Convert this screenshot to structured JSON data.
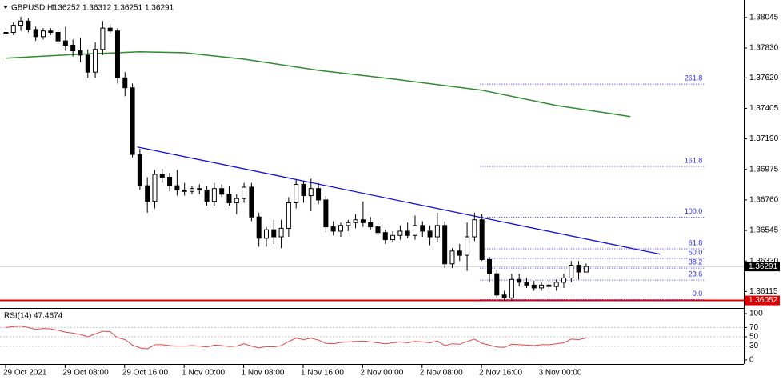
{
  "chart_data": {
    "type": "candlestick",
    "title": "GBPUSD,H1",
    "categories": [
      "29 Oct 2021",
      null,
      null,
      null,
      null,
      null,
      null,
      null,
      "29 Oct 08:00",
      null,
      null,
      null,
      null,
      null,
      null,
      null,
      "29 Oct 16:00",
      null,
      null,
      null,
      null,
      null,
      null,
      null,
      "1 Nov 00:00",
      null,
      null,
      null,
      null,
      null,
      null,
      null,
      "1 Nov 08:00",
      null,
      null,
      null,
      null,
      null,
      null,
      null,
      "1 Nov 16:00",
      null,
      null,
      null,
      null,
      null,
      null,
      null,
      "2 Nov 00:00",
      null,
      null,
      null,
      null,
      null,
      null,
      null,
      "2 Nov 08:00",
      null,
      null,
      null,
      null,
      null,
      null,
      null,
      "2 Nov 16:00",
      null,
      null,
      null,
      null,
      null,
      null,
      null,
      "3 Nov 00:00",
      null,
      null,
      null,
      null,
      null,
      null
    ],
    "open": [
      1.3794,
      1.3794,
      1.3799,
      1.3802,
      1.3796,
      1.3791,
      1.3795,
      1.3794,
      1.3788,
      1.3785,
      1.3781,
      1.3778,
      1.3766,
      1.3782,
      1.3797,
      1.3795,
      1.3762,
      1.3755,
      1.3708,
      1.3686,
      1.3675,
      1.3694,
      1.3692,
      1.3686,
      1.3683,
      1.3682,
      1.3684,
      1.3683,
      1.3675,
      1.3684,
      1.368,
      1.3674,
      1.3677,
      1.3685,
      1.3664,
      1.3649,
      1.3655,
      1.365,
      1.3656,
      1.3674,
      1.3687,
      1.3679,
      1.3684,
      1.3676,
      1.3657,
      1.3654,
      1.3658,
      1.366,
      1.3662,
      1.366,
      1.3657,
      1.3653,
      1.3648,
      1.3651,
      1.3654,
      1.3651,
      1.3658,
      1.3654,
      1.365,
      1.3658,
      1.3631,
      1.364,
      1.3637,
      1.365,
      1.3662,
      1.3634,
      1.3624,
      1.3609,
      1.3607,
      1.362,
      1.3618,
      1.3616,
      1.3614,
      1.3616,
      1.3615,
      1.3618,
      1.3621,
      1.363,
      1.36252
    ],
    "high": [
      1.3797,
      1.3801,
      1.3805,
      1.3804,
      1.3798,
      1.3797,
      1.3797,
      1.3796,
      1.3798,
      1.3789,
      1.379,
      1.3782,
      1.3787,
      1.3802,
      1.38,
      1.3797,
      1.3766,
      1.3758,
      1.3712,
      1.3692,
      1.3697,
      1.3698,
      1.3695,
      1.3697,
      1.3688,
      1.3686,
      1.3687,
      1.3686,
      1.3688,
      1.3687,
      1.3686,
      1.368,
      1.3688,
      1.3688,
      1.3667,
      1.3657,
      1.3662,
      1.3662,
      1.3678,
      1.369,
      1.3689,
      1.3691,
      1.3688,
      1.3679,
      1.3661,
      1.366,
      1.3662,
      1.3666,
      1.3675,
      1.3664,
      1.366,
      1.3655,
      1.3654,
      1.3658,
      1.366,
      1.3665,
      1.3661,
      1.3658,
      1.3667,
      1.3661,
      1.3642,
      1.3645,
      1.366,
      1.3667,
      1.3666,
      1.3636,
      1.3627,
      1.3612,
      1.3624,
      1.3624,
      1.3621,
      1.3619,
      1.3618,
      1.3619,
      1.362,
      1.3624,
      1.3633,
      1.3633,
      1.36312
    ],
    "low": [
      1.3791,
      1.3792,
      1.3795,
      1.3794,
      1.3788,
      1.3789,
      1.3792,
      1.3786,
      1.3781,
      1.3777,
      1.3773,
      1.3762,
      1.3762,
      1.3778,
      1.3793,
      1.3758,
      1.3749,
      1.3706,
      1.3683,
      1.3667,
      1.367,
      1.3688,
      1.3682,
      1.3679,
      1.3679,
      1.368,
      1.368,
      1.3672,
      1.3672,
      1.3678,
      1.3672,
      1.3666,
      1.3674,
      1.3661,
      1.3643,
      1.3643,
      1.3645,
      1.3642,
      1.365,
      1.367,
      1.3674,
      1.3668,
      1.3673,
      1.3653,
      1.3651,
      1.365,
      1.3654,
      1.3656,
      1.3657,
      1.3655,
      1.3651,
      1.3645,
      1.3646,
      1.3648,
      1.3649,
      1.3648,
      1.365,
      1.3644,
      1.3646,
      1.3628,
      1.3628,
      1.3633,
      1.3626,
      1.3647,
      1.3633,
      1.3618,
      1.3607,
      1.3605,
      1.3605,
      1.3615,
      1.3614,
      1.3612,
      1.3612,
      1.3613,
      1.3612,
      1.3614,
      1.3618,
      1.362,
      1.36251
    ],
    "close": [
      1.3794,
      1.3799,
      1.3802,
      1.3796,
      1.3791,
      1.3795,
      1.3794,
      1.3788,
      1.3785,
      1.3781,
      1.3778,
      1.3766,
      1.3782,
      1.3797,
      1.3795,
      1.3762,
      1.3755,
      1.3708,
      1.3686,
      1.3675,
      1.3694,
      1.3692,
      1.3686,
      1.3683,
      1.3682,
      1.3684,
      1.3683,
      1.3675,
      1.3684,
      1.368,
      1.3674,
      1.3677,
      1.3685,
      1.3664,
      1.3649,
      1.3655,
      1.365,
      1.3656,
      1.3674,
      1.3687,
      1.3679,
      1.3684,
      1.3676,
      1.3657,
      1.3654,
      1.3658,
      1.366,
      1.3662,
      1.366,
      1.3657,
      1.3653,
      1.3648,
      1.3651,
      1.3654,
      1.3651,
      1.3658,
      1.3654,
      1.365,
      1.3658,
      1.3631,
      1.364,
      1.3637,
      1.365,
      1.3662,
      1.3634,
      1.3624,
      1.3609,
      1.3607,
      1.362,
      1.3618,
      1.3616,
      1.3614,
      1.3616,
      1.3615,
      1.3618,
      1.3621,
      1.363,
      1.36252,
      1.36291
    ],
    "bull_color": "#ffffff",
    "bear_color": "#000000",
    "xlim": [
      -0.75,
      99.25
    ],
    "ylim": [
      1.3601,
      1.3814
    ],
    "yticks": [
      1.36115,
      {
        "value": 1.3633,
        "label": "1.36330"
      },
      1.36545,
      {
        "value": 1.3676,
        "label": "1.36760"
      },
      1.36975,
      {
        "value": 1.3719,
        "label": "1.37190"
      },
      1.37405,
      {
        "value": 1.3762,
        "label": "1.37620"
      },
      {
        "value": 1.3783,
        "label": "1.37830"
      },
      1.38045
    ],
    "moving_average": {
      "color": "#2e8b2e",
      "x": [
        0,
        10,
        18,
        24,
        32,
        42,
        53,
        64,
        74,
        84
      ],
      "values": [
        1.37758,
        1.37786,
        1.37803,
        1.37797,
        1.37752,
        1.37673,
        1.37606,
        1.37533,
        1.37426,
        1.37347
      ]
    },
    "trendline": {
      "color": "#1010e0",
      "x": [
        17.7,
        88
      ],
      "values": [
        1.37133,
        1.36378
      ]
    },
    "fibonacci": {
      "color": "#2a2aff",
      "x": [
        63.8,
        93.9
      ],
      "levels": [
        {
          "value": 1.36058,
          "label": "0.0"
        },
        {
          "value": 1.36195,
          "label": "23.6"
        },
        {
          "value": 1.3628,
          "label": "38.2"
        },
        {
          "value": 1.36348,
          "label": "50.0"
        },
        {
          "value": 1.36416,
          "label": "61.8"
        },
        {
          "value": 1.36638,
          "label": "100.0"
        },
        {
          "value": 1.36996,
          "label": "161.8"
        },
        {
          "value": 1.37576,
          "label": "261.8"
        }
      ]
    },
    "red_line": 1.36052,
    "rsi": {
      "name": "RSI(14)",
      "color": "#e04848",
      "ylim": [
        0,
        100
      ],
      "yticks": [
        0,
        30,
        50,
        70,
        100
      ],
      "values": [
        70,
        72,
        73,
        70,
        66,
        68,
        67,
        64,
        60,
        58,
        55,
        50,
        56,
        62,
        61,
        48,
        44,
        32,
        26,
        24,
        33,
        33,
        31,
        30,
        30,
        31,
        30,
        28,
        32,
        31,
        29,
        30,
        35,
        30,
        26,
        29,
        28,
        31,
        40,
        47,
        44,
        47,
        43,
        36,
        35,
        38,
        39,
        40,
        41,
        39,
        37,
        35,
        37,
        39,
        37,
        40,
        39,
        37,
        41,
        31,
        35,
        34,
        40,
        45,
        36,
        32,
        28,
        27,
        34,
        33,
        32,
        31,
        33,
        33,
        35,
        37,
        45,
        44,
        47.4674
      ]
    }
  }
}
